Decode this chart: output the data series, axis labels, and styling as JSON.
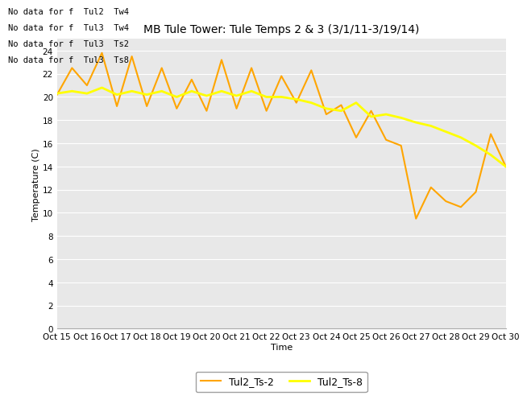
{
  "title": "MB Tule Tower: Tule Temps 2 & 3 (3/1/11-3/19/14)",
  "xlabel": "Time",
  "ylabel": "Temperature (C)",
  "xlim": [
    0,
    15
  ],
  "ylim": [
    0,
    25
  ],
  "yticks": [
    0,
    2,
    4,
    6,
    8,
    10,
    12,
    14,
    16,
    18,
    20,
    22,
    24
  ],
  "xtick_labels": [
    "Oct 15",
    "Oct 16",
    "Oct 17",
    "Oct 18",
    "Oct 19",
    "Oct 20",
    "Oct 21",
    "Oct 22",
    "Oct 23",
    "Oct 24",
    "Oct 25",
    "Oct 26",
    "Oct 27",
    "Oct 28",
    "Oct 29",
    "Oct 30"
  ],
  "no_data_texts": [
    "No data for f  Tul2  Tw4",
    "No data for f  Tul3  Tw4",
    "No data for f  Tul3  Ts2",
    "No data for f  Tul3  Ts8"
  ],
  "legend_labels": [
    "Tul2_Ts-2",
    "Tul2_Ts-8"
  ],
  "color_ts2": "#FFA500",
  "color_ts8": "#FFFF00",
  "ts2_x": [
    0,
    0.5,
    1.0,
    1.5,
    2.0,
    2.5,
    3.0,
    3.5,
    4.0,
    4.5,
    5.0,
    5.5,
    6.0,
    6.5,
    7.0,
    7.5,
    8.0,
    8.5,
    9.0,
    9.5,
    10.0,
    10.5,
    11.0,
    11.5,
    12.0,
    12.5,
    13.0,
    13.5,
    14.0,
    14.5,
    15.0
  ],
  "ts2_y": [
    20.2,
    22.5,
    21.0,
    23.8,
    19.2,
    23.5,
    19.2,
    22.5,
    19.0,
    21.5,
    18.8,
    23.2,
    19.0,
    22.5,
    18.8,
    21.8,
    19.5,
    22.3,
    18.5,
    19.3,
    16.5,
    18.8,
    16.3,
    15.8,
    9.5,
    12.2,
    11.0,
    10.5,
    11.8,
    16.8,
    14.0
  ],
  "ts8_x": [
    0,
    0.5,
    1.0,
    1.5,
    2.0,
    2.5,
    3.0,
    3.5,
    4.0,
    4.5,
    5.0,
    5.5,
    6.0,
    6.5,
    7.0,
    7.5,
    8.0,
    8.5,
    9.0,
    9.5,
    10.0,
    10.5,
    11.0,
    11.5,
    12.0,
    12.5,
    13.0,
    13.5,
    14.0,
    14.5,
    15.0
  ],
  "ts8_y": [
    20.3,
    20.5,
    20.3,
    20.8,
    20.2,
    20.5,
    20.2,
    20.5,
    20.0,
    20.5,
    20.1,
    20.5,
    20.1,
    20.5,
    20.0,
    20.0,
    19.8,
    19.5,
    19.0,
    18.8,
    19.5,
    18.3,
    18.5,
    18.2,
    17.8,
    17.5,
    17.0,
    16.5,
    15.8,
    15.0,
    14.0
  ],
  "background_color": "#E8E8E8",
  "grid_color": "#FFFFFF",
  "title_fontsize": 10,
  "axis_label_fontsize": 8,
  "tick_fontsize": 7.5,
  "nodata_fontsize": 7.5
}
